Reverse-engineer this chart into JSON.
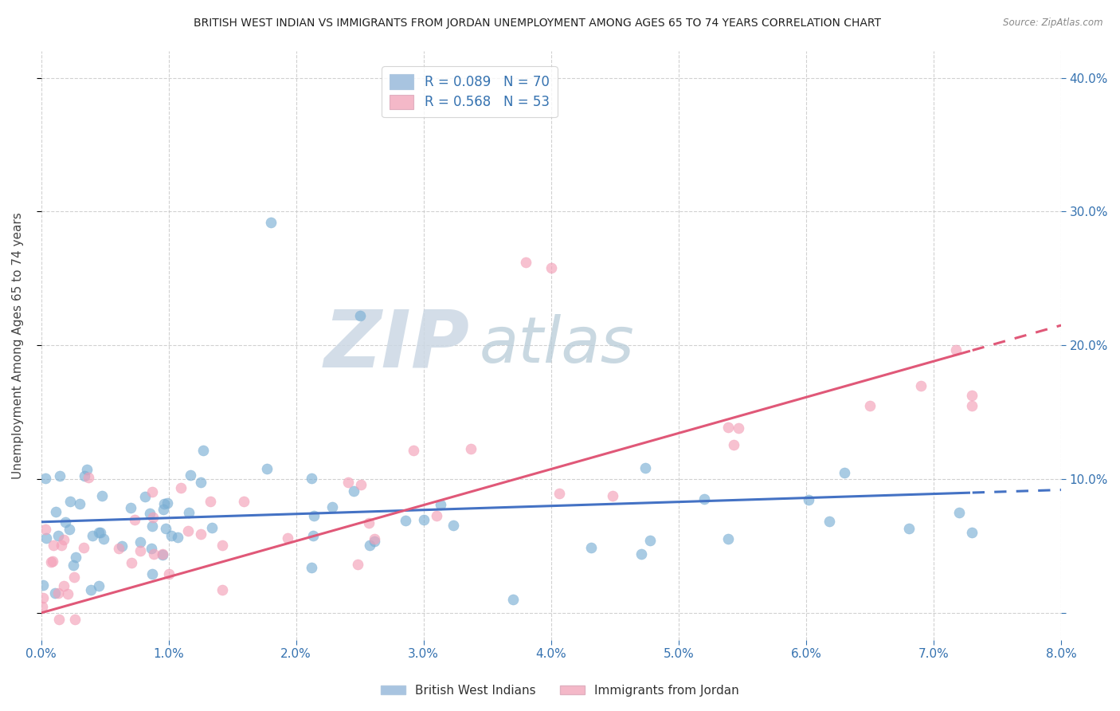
{
  "title": "BRITISH WEST INDIAN VS IMMIGRANTS FROM JORDAN UNEMPLOYMENT AMONG AGES 65 TO 74 YEARS CORRELATION CHART",
  "source": "Source: ZipAtlas.com",
  "ylabel": "Unemployment Among Ages 65 to 74 years",
  "xlim": [
    0.0,
    0.08
  ],
  "ylim": [
    -0.02,
    0.42
  ],
  "yticks": [
    0.0,
    0.1,
    0.2,
    0.3,
    0.4
  ],
  "xticks": [
    0.0,
    0.01,
    0.02,
    0.03,
    0.04,
    0.05,
    0.06,
    0.07,
    0.08
  ],
  "blue_color": "#7bafd4",
  "pink_color": "#f4a0b8",
  "blue_line_color": "#4472c4",
  "pink_line_color": "#e05878",
  "watermark_zip": "ZIP",
  "watermark_atlas": "atlas",
  "watermark_color_zip": "#c8d8e8",
  "watermark_color_atlas": "#b8ccd8",
  "background_color": "#ffffff",
  "grid_color": "#cccccc",
  "blue_R": 0.089,
  "blue_N": 70,
  "pink_R": 0.568,
  "pink_N": 53,
  "legend_blue_color": "#a8c4e0",
  "legend_pink_color": "#f4b8c8",
  "legend_text_color": "#3572b0",
  "tick_color": "#3572b0",
  "title_color": "#222222",
  "source_color": "#888888",
  "ylabel_color": "#444444"
}
